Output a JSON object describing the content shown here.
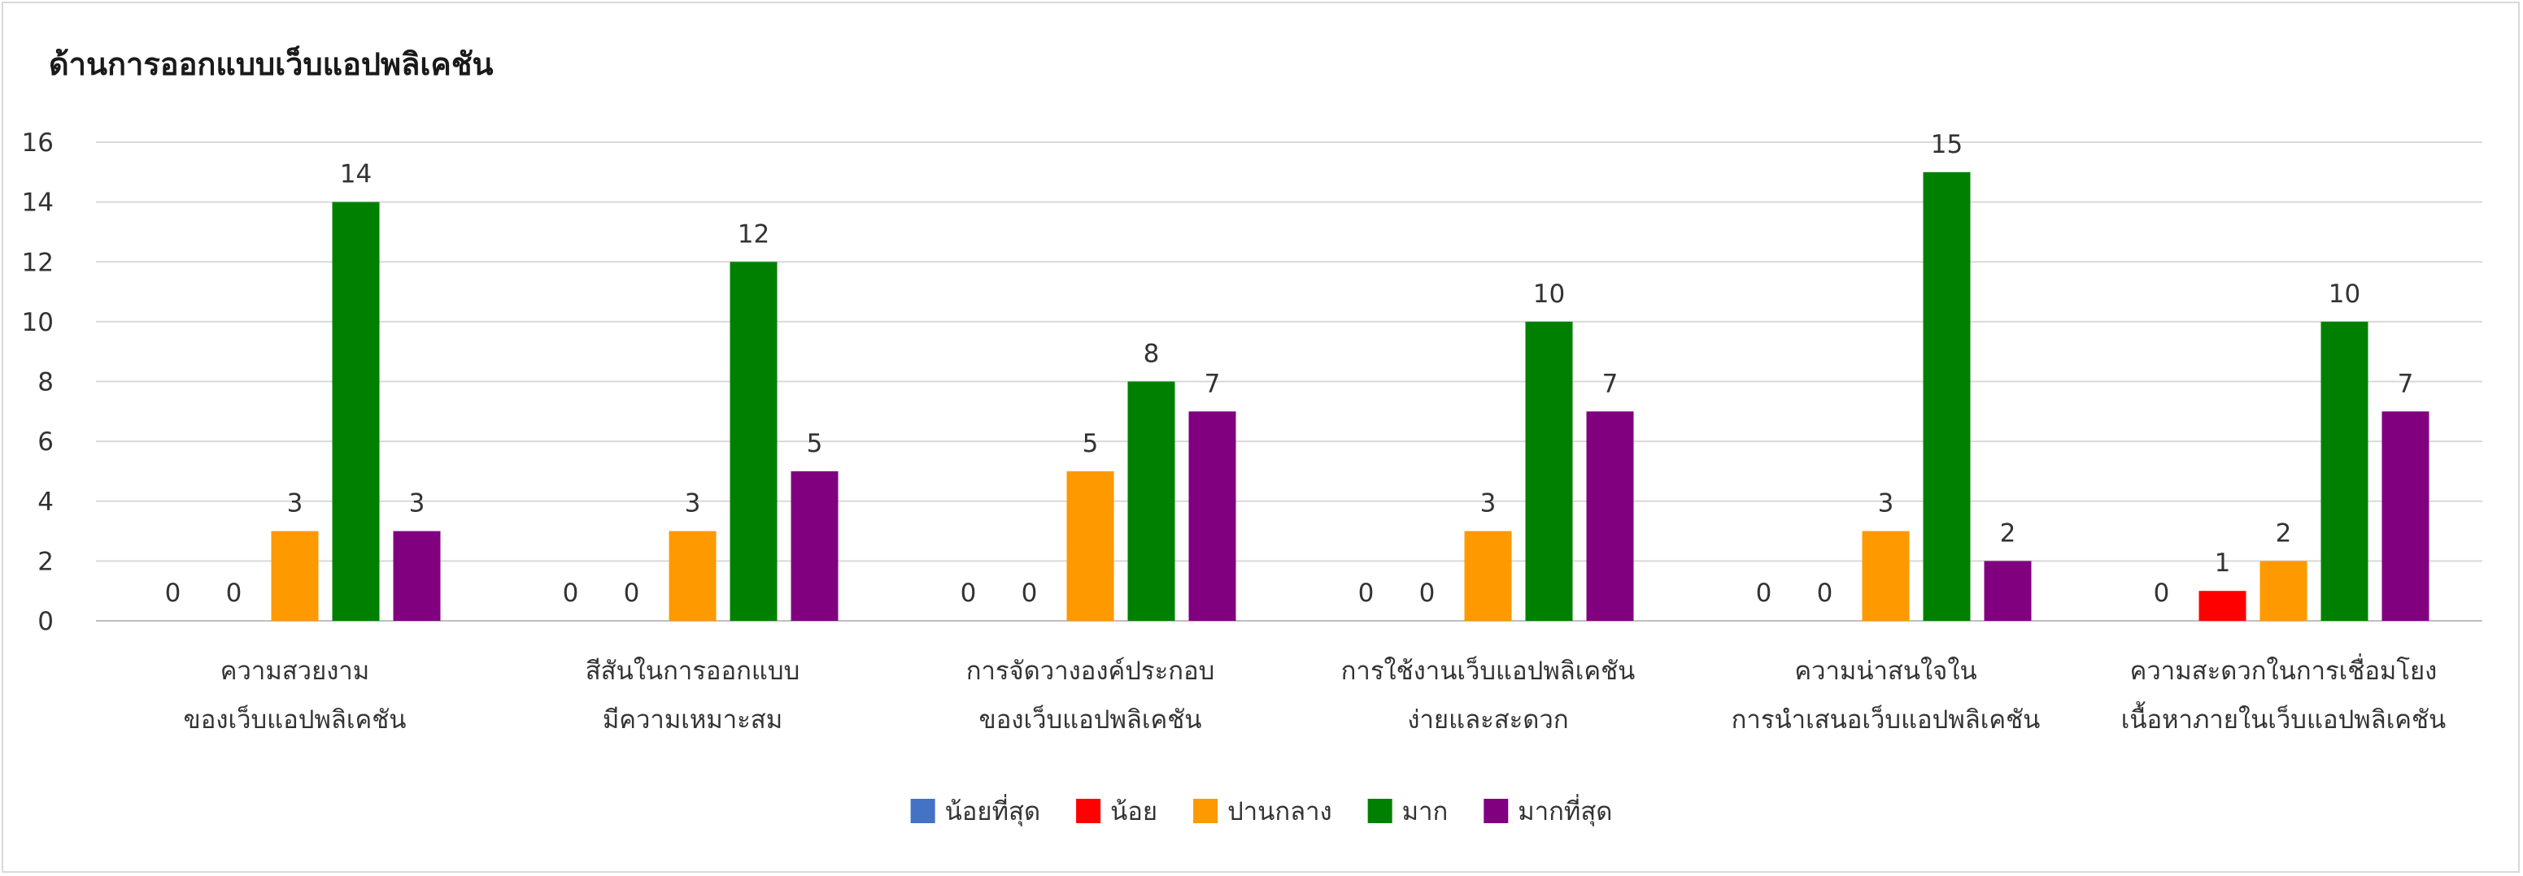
{
  "chart_data": {
    "type": "bar",
    "title": "ด้านการออกแบบเว็บแอปพลิเคชัน",
    "xlabel": "",
    "ylabel": "",
    "ylim": [
      0,
      16
    ],
    "yticks": [
      0,
      2,
      4,
      6,
      8,
      10,
      12,
      14,
      16
    ],
    "grid": true,
    "legend_position": "bottom",
    "categories": [
      [
        "ความสวยงาม",
        "ของเว็บแอปพลิเคชัน"
      ],
      [
        "สีสันในการออกแบบ",
        "มีความเหมาะสม"
      ],
      [
        "การจัดวางองค์ประกอบ",
        "ของเว็บแอปพลิเคชัน"
      ],
      [
        "การใช้งานเว็บแอปพลิเคชัน",
        "ง่ายและสะดวก"
      ],
      [
        "ความน่าสนใจใน",
        "การนำเสนอเว็บแอปพลิเคชัน"
      ],
      [
        "ความสะดวกในการเชื่อมโยง",
        "เนื้อหาภายในเว็บแอปพลิเคชัน"
      ]
    ],
    "series": [
      {
        "name": "น้อยที่สุด",
        "color": "#4472c4",
        "values": [
          0,
          0,
          0,
          0,
          0,
          0
        ]
      },
      {
        "name": "น้อย",
        "color": "#ff0000",
        "values": [
          0,
          0,
          0,
          0,
          0,
          1
        ]
      },
      {
        "name": "ปานกลาง",
        "color": "#ff9900",
        "values": [
          3,
          3,
          5,
          3,
          3,
          2
        ]
      },
      {
        "name": "มาก",
        "color": "#008000",
        "values": [
          14,
          12,
          8,
          10,
          15,
          10
        ]
      },
      {
        "name": "มากที่สุด",
        "color": "#800080",
        "values": [
          3,
          5,
          7,
          7,
          2,
          7
        ]
      }
    ]
  }
}
